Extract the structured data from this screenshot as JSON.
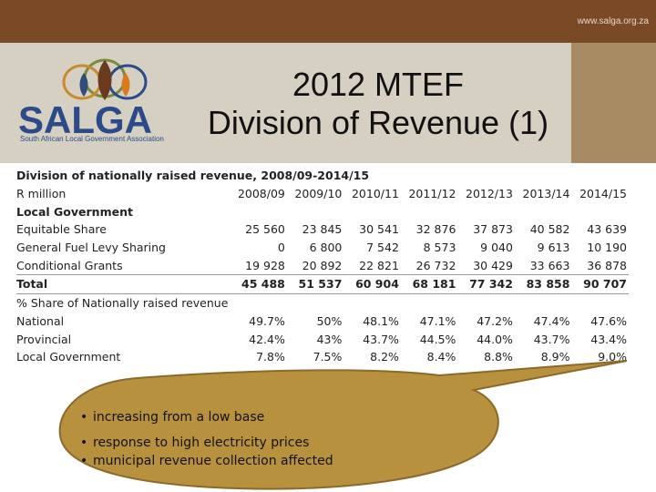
{
  "header": {
    "url": "www.salga.org.za",
    "title_line1": "2012 MTEF",
    "title_line2": "Division of Revenue (1)",
    "logo_text": "SALGA",
    "logo_tagline": "South African Local Government Association"
  },
  "table": {
    "caption": "Division of nationally raised revenue, 2008/09-2014/15",
    "unit_label": "R million",
    "years": [
      "2008/09",
      "2009/10",
      "2010/11",
      "2011/12",
      "2012/13",
      "2013/14",
      "2014/15"
    ],
    "rows": [
      {
        "label": "Local Government",
        "values": [
          "",
          "",
          "",
          "",
          "",
          "",
          ""
        ],
        "style": "bold"
      },
      {
        "label": "Equitable Share",
        "values": [
          "25 560",
          "23 845",
          "30 541",
          "32 876",
          "37 873",
          "40 582",
          "43 639"
        ],
        "style": ""
      },
      {
        "label": "General Fuel Levy Sharing",
        "values": [
          "0",
          "6 800",
          "7 542",
          "8 573",
          "9 040",
          "9 613",
          "10 190"
        ],
        "style": ""
      },
      {
        "label": "Conditional Grants",
        "values": [
          "19 928",
          "20 892",
          "22 821",
          "26 732",
          "30 429",
          "33 663",
          "36 878"
        ],
        "style": ""
      },
      {
        "label": "Total",
        "values": [
          "45 488",
          "51 537",
          "60 904",
          "68 181",
          "77 342",
          "83 858",
          "90 707"
        ],
        "style": "bold total"
      },
      {
        "label": "% Share of Nationally raised revenue",
        "values": [
          "",
          "",
          "",
          "",
          "",
          "",
          ""
        ],
        "style": ""
      },
      {
        "label": "National",
        "values": [
          "49.7%",
          "50%",
          "48.1%",
          "47.1%",
          "47.2%",
          "47.4%",
          "47.6%"
        ],
        "style": ""
      },
      {
        "label": "Provincial",
        "values": [
          "42.4%",
          "43%",
          "43.7%",
          "44.5%",
          "44.0%",
          "43.7%",
          "43.4%"
        ],
        "style": ""
      },
      {
        "label": "Local Government",
        "values": [
          "7.8%",
          "7.5%",
          "8.2%",
          "8.4%",
          "8.8%",
          "8.9%",
          "9.0%"
        ],
        "style": ""
      }
    ]
  },
  "callout": {
    "bullet_char": "•",
    "bullets": [
      "increasing from a low base",
      "response to high electricity prices",
      "municipal revenue collection affected"
    ]
  },
  "colors": {
    "topbar": "#7a4a26",
    "header_band": "#d6d0c3",
    "header_right": "#a98b63",
    "callout_fill": "#b8913e",
    "callout_stroke": "#8a6a2a",
    "logo_blue": "#2a4a8a",
    "logo_orange": "#d97a1e"
  }
}
